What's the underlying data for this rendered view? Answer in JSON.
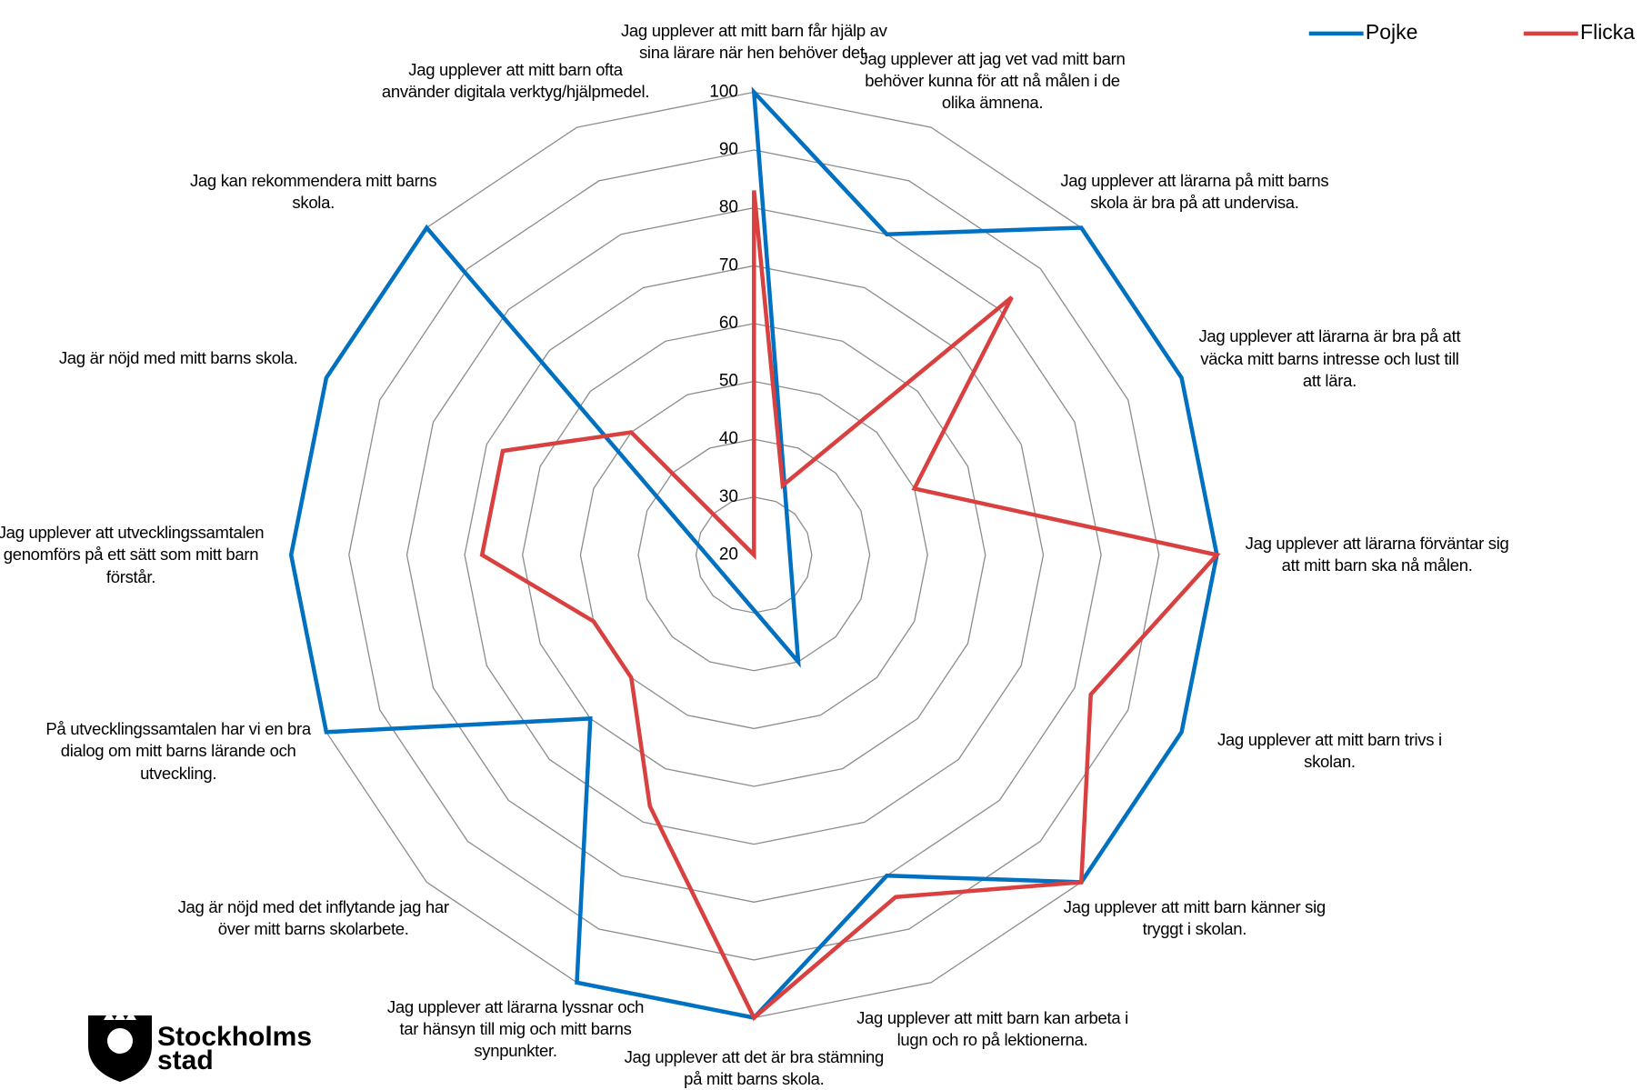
{
  "chart_data": {
    "type": "radar",
    "categories": [
      "Jag upplever att mitt barn får hjälp av sina lärare när hen behöver det.",
      "Jag upplever att jag vet vad mitt barn behöver kunna för att nå målen i de olika ämnena.",
      "Jag upplever att lärarna på mitt barns skola är bra på att undervisa.",
      "Jag upplever att lärarna är bra på att väcka mitt barns intresse och lust till att lära.",
      "Jag upplever att lärarna förväntar sig att mitt barn ska nå målen.",
      "Jag upplever att mitt barn trivs i skolan.",
      "Jag upplever att mitt barn känner sig tryggt i skolan.",
      "Jag upplever att mitt barn kan arbeta i lugn och ro på lektionerna.",
      "Jag upplever att det är bra stämning på mitt barns skola.",
      "Jag upplever att lärarna lyssnar och tar hänsyn till mig och mitt barns synpunkter.",
      "Jag är nöjd med det inflytande jag har över mitt barns skolarbete.",
      "På utvecklingssamtalen har vi en bra dialog om mitt barns lärande och utveckling.",
      "Jag upplever att utvecklingssamtalen genomförs på ett sätt som mitt barn förstår.",
      "Jag är nöjd med mitt barns skola.",
      "Jag kan rekommendera mitt barns skola.",
      "Jag upplever att mitt barn ofta använder digitala verktyg/hjälpmedel."
    ],
    "series": [
      {
        "name": "Pojke",
        "color": "#0070c0",
        "values": [
          100,
          80,
          100,
          100,
          100,
          100,
          100,
          80,
          100,
          100,
          60,
          100,
          100,
          100,
          100,
          0
        ]
      },
      {
        "name": "Flicka",
        "color": "#d94040",
        "values": [
          83,
          33,
          83,
          50,
          100,
          83,
          100,
          84,
          100,
          67,
          50,
          50,
          67,
          67,
          50,
          20
        ]
      }
    ],
    "ylim": [
      20,
      100
    ],
    "yticks": [
      20,
      30,
      40,
      50,
      60,
      70,
      80,
      90,
      100
    ],
    "grid": true,
    "legend": "top-right",
    "logo": [
      "Stockholms",
      "stad"
    ]
  }
}
